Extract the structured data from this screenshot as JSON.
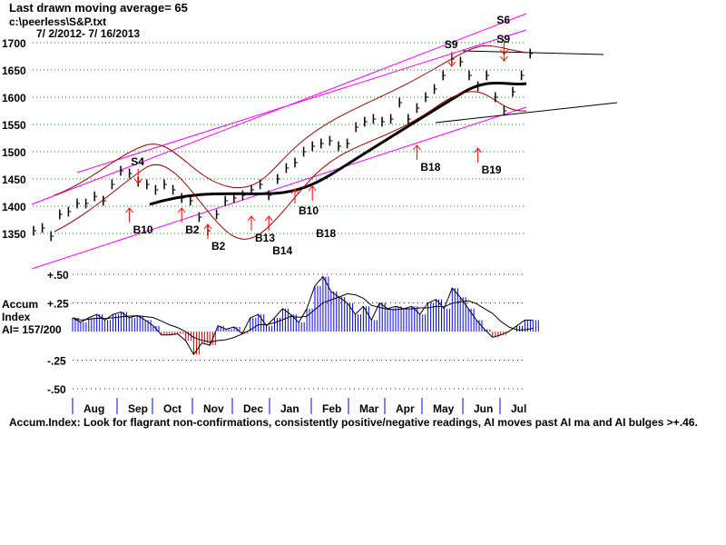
{
  "header": {
    "line1": "Last drawn moving average= 65",
    "line2": "c:\\peerless\\S&P.txt",
    "line3": " 7/ 2/2012- 7/ 16/2013"
  },
  "ai": {
    "label1": "Accum",
    "label2": "Index",
    "label3": "AI= 157/200"
  },
  "footer": "Accum.Index: Look for flagrant non-confirmations, consistently positive/negative readings, AI moves past AI ma and AI bulges >+.46.",
  "chart_data": [
    {
      "type": "bar",
      "title": "S&P 500 weekly price bars",
      "price_ticks": [
        1700,
        1650,
        1600,
        1550,
        1500,
        1450,
        1400,
        1350
      ],
      "ylim": [
        1300,
        1710
      ],
      "closes": [
        1355,
        1360,
        1345,
        1385,
        1390,
        1405,
        1405,
        1418,
        1410,
        1440,
        1465,
        1460,
        1445,
        1440,
        1430,
        1440,
        1430,
        1415,
        1410,
        1380,
        1355,
        1385,
        1410,
        1415,
        1420,
        1430,
        1440,
        1420,
        1450,
        1470,
        1480,
        1500,
        1510,
        1515,
        1520,
        1510,
        1515,
        1545,
        1555,
        1560,
        1555,
        1560,
        1590,
        1560,
        1580,
        1600,
        1615,
        1640,
        1670,
        1665,
        1640,
        1620,
        1640,
        1600,
        1575,
        1610,
        1640,
        1680
      ],
      "signals": [
        {
          "label": "S4",
          "week": 12,
          "type": "sell",
          "price": 1475
        },
        {
          "label": "B10",
          "week": 11,
          "type": "buy",
          "price": 1370
        },
        {
          "label": "B2",
          "week": 17,
          "type": "buy",
          "price": 1370
        },
        {
          "label": "B2",
          "week": 20,
          "type": "buy",
          "price": 1340
        },
        {
          "label": "B13",
          "week": 25,
          "type": "buy",
          "price": 1355
        },
        {
          "label": "B14",
          "week": 27,
          "type": "buy",
          "price": 1355
        },
        {
          "label": "B10",
          "week": 30,
          "type": "buy",
          "price": 1405
        },
        {
          "label": "B18",
          "week": 32,
          "type": "buy",
          "price": 1410
        },
        {
          "label": "B18",
          "week": 44,
          "type": "buy",
          "price": 1485
        },
        {
          "label": "S9",
          "week": 48,
          "type": "sell",
          "price": 1690
        },
        {
          "label": "B19",
          "week": 51,
          "type": "buy",
          "price": 1480
        },
        {
          "label": "S9",
          "week": 54,
          "type": "sell",
          "price": 1700
        },
        {
          "label": "S6",
          "week": 54,
          "type": "sell",
          "price": 1712
        }
      ]
    },
    {
      "type": "bar",
      "title": "Accum Index",
      "yticks": [
        "+.50",
        "+.25",
        "-.25",
        "-.50"
      ],
      "ylim": [
        -0.5,
        0.5
      ],
      "values": [
        0.12,
        0.08,
        0.12,
        0.15,
        0.1,
        0.15,
        0.17,
        0.12,
        0.14,
        0.1,
        0.05,
        -0.03,
        -0.03,
        -0.02,
        -0.08,
        -0.2,
        -0.1,
        -0.12,
        0.05,
        0.02,
        0.04,
        -0.02,
        0.12,
        0.15,
        0.05,
        0.12,
        0.2,
        0.15,
        0.08,
        0.2,
        0.4,
        0.48,
        0.35,
        0.3,
        0.25,
        0.15,
        0.22,
        0.1,
        0.25,
        0.2,
        0.22,
        0.2,
        0.22,
        0.15,
        0.25,
        0.28,
        0.2,
        0.38,
        0.3,
        0.2,
        0.1,
        0.02,
        -0.05,
        -0.03,
        0.0,
        0.05,
        0.1,
        0.1
      ],
      "months": [
        "Aug",
        "Sep",
        "Oct",
        "Nov",
        "Dec",
        "Jan",
        "Feb",
        "Mar",
        "Apr",
        "May",
        "Jun",
        "Jul"
      ]
    }
  ]
}
